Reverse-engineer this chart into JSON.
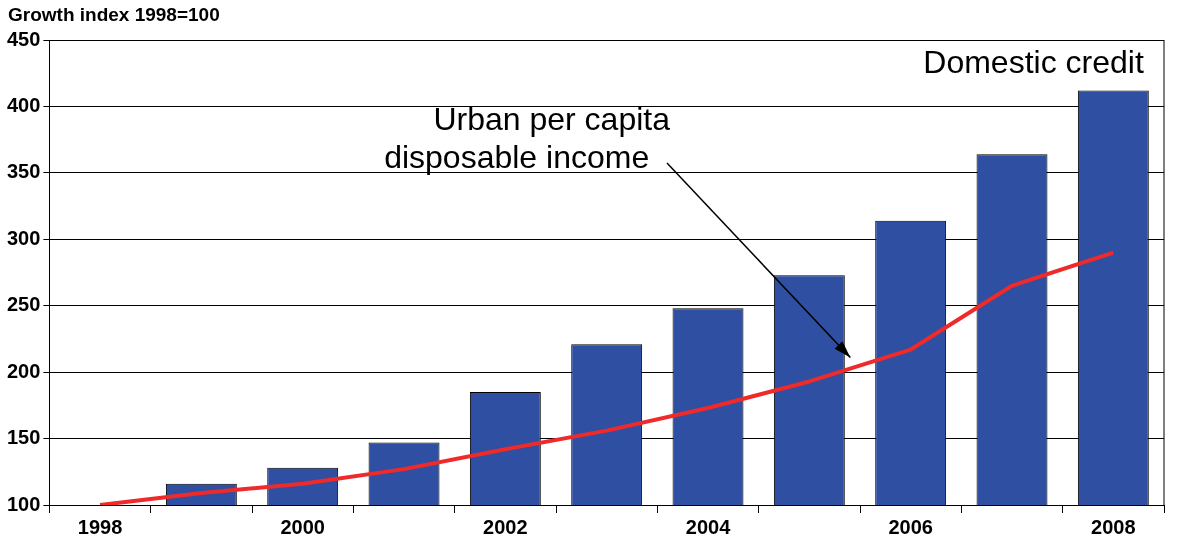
{
  "chart_data": {
    "type": "bar",
    "ylabel": "Growth index 1998=100",
    "categories": [
      "1998",
      null,
      "2000",
      null,
      "2002",
      null,
      "2004",
      null,
      "2006",
      null,
      "2008"
    ],
    "series": [
      {
        "name": "Domestic credit",
        "color": "#2e4fa2",
        "values": [
          100,
          116,
          128,
          147,
          185,
          221,
          248,
          273,
          314,
          364,
          412
        ]
      },
      {
        "name": "Urban per capita disposable income",
        "type": "line",
        "color": "#ee2a2a",
        "values": [
          100,
          109,
          116,
          127,
          142,
          156,
          173,
          193,
          217,
          265,
          290
        ]
      }
    ],
    "ylim": [
      100,
      450
    ],
    "yticks": [
      100,
      150,
      200,
      250,
      300,
      350,
      400,
      450
    ],
    "grid": "y",
    "legend": false,
    "marker": "none",
    "line_style": "solid"
  }
}
